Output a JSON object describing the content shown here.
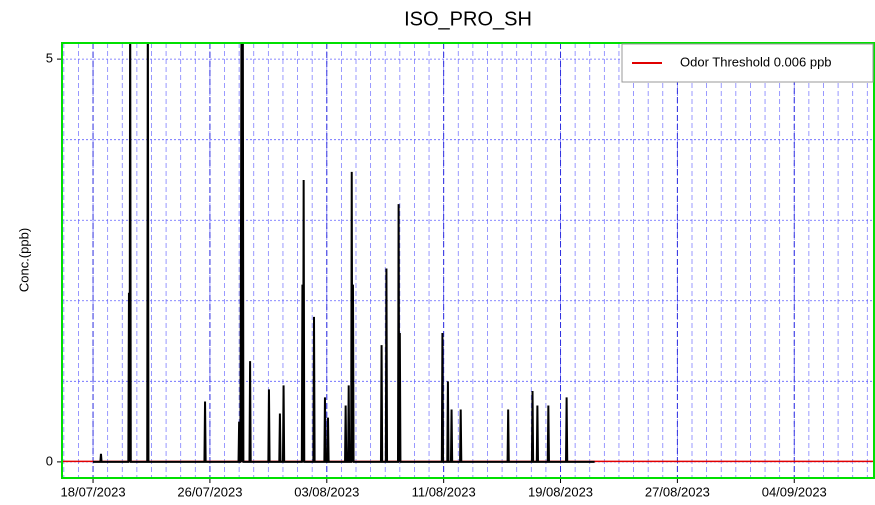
{
  "chart_data": {
    "type": "line",
    "title": "ISO_PRO_SH",
    "y_label": "Conc.(ppb)",
    "xlim": [
      "2023-07-15T21:00",
      "2023-09-09T11:00"
    ],
    "xticks": [
      {
        "value": "2023-07-18",
        "label": "18/07/2023"
      },
      {
        "value": "2023-07-26",
        "label": "26/07/2023"
      },
      {
        "value": "2023-08-03",
        "label": "03/08/2023"
      },
      {
        "value": "2023-08-11",
        "label": "11/08/2023"
      },
      {
        "value": "2023-08-19",
        "label": "19/08/2023"
      },
      {
        "value": "2023-08-27",
        "label": "27/08/2023"
      },
      {
        "value": "2023-09-04",
        "label": "04/09/2023"
      }
    ],
    "x_minor_grid_days": 1,
    "ylim": [
      -0.2,
      5.2
    ],
    "yticks": [
      0,
      5
    ],
    "y_minor_ticks": [
      1,
      2,
      3,
      4
    ],
    "grid": true,
    "legend": "upper right",
    "series": [
      {
        "color": "#000000",
        "x": [
          "2023-07-18T00:00",
          "2023-07-18T12:00",
          "2023-07-18T13:00",
          "2023-07-18T14:00",
          "2023-07-20T10:00",
          "2023-07-20T11:00",
          "2023-07-20T12:00",
          "2023-07-20T13:00",
          "2023-07-20T14:00",
          "2023-07-21T17:00",
          "2023-07-21T18:00",
          "2023-07-21T19:00",
          "2023-07-25T15:00",
          "2023-07-25T16:00",
          "2023-07-25T17:00",
          "2023-07-27T23:00",
          "2023-07-28T00:00",
          "2023-07-28T01:00",
          "2023-07-28T02:00",
          "2023-07-28T03:00",
          "2023-07-28T04:00",
          "2023-07-28T05:00",
          "2023-07-28T06:00",
          "2023-07-28T07:00",
          "2023-07-28T17:00",
          "2023-07-28T18:00",
          "2023-07-28T19:00",
          "2023-07-30T00:00",
          "2023-07-30T01:00",
          "2023-07-30T02:00",
          "2023-07-30T18:00",
          "2023-07-30T19:00",
          "2023-07-30T20:00",
          "2023-07-31T00:00",
          "2023-07-31T01:00",
          "2023-07-31T02:00",
          "2023-08-01T07:00",
          "2023-08-01T08:00",
          "2023-08-01T09:00",
          "2023-08-01T10:00",
          "2023-08-01T11:00",
          "2023-08-02T02:00",
          "2023-08-02T03:00",
          "2023-08-02T04:00",
          "2023-08-02T20:00",
          "2023-08-02T21:00",
          "2023-08-02T22:00",
          "2023-08-03T01:00",
          "2023-08-03T02:00",
          "2023-08-03T03:00",
          "2023-08-04T06:00",
          "2023-08-04T07:00",
          "2023-08-04T08:00",
          "2023-08-04T11:00",
          "2023-08-04T12:00",
          "2023-08-04T13:00",
          "2023-08-04T16:00",
          "2023-08-04T17:00",
          "2023-08-04T18:00",
          "2023-08-04T19:00",
          "2023-08-04T20:00",
          "2023-08-06T17:00",
          "2023-08-06T18:00",
          "2023-08-06T19:00",
          "2023-08-07T01:00",
          "2023-08-07T02:00",
          "2023-08-07T03:00",
          "2023-08-07T21:00",
          "2023-08-07T22:00",
          "2023-08-07T23:00",
          "2023-08-08T00:00",
          "2023-08-08T01:00",
          "2023-08-10T21:00",
          "2023-08-10T22:00",
          "2023-08-10T23:00",
          "2023-08-11T06:00",
          "2023-08-11T07:00",
          "2023-08-11T08:00",
          "2023-08-11T12:00",
          "2023-08-11T13:00",
          "2023-08-11T14:00",
          "2023-08-12T03:00",
          "2023-08-12T04:00",
          "2023-08-12T05:00",
          "2023-08-15T09:00",
          "2023-08-15T10:00",
          "2023-08-15T11:00",
          "2023-08-17T01:00",
          "2023-08-17T02:00",
          "2023-08-17T03:00",
          "2023-08-17T09:00",
          "2023-08-17T10:00",
          "2023-08-17T11:00",
          "2023-08-18T03:00",
          "2023-08-18T04:00",
          "2023-08-18T05:00",
          "2023-08-19T09:00",
          "2023-08-19T10:00",
          "2023-08-19T11:00",
          "2023-08-21T08:00"
        ],
        "values": [
          0,
          0,
          0.1,
          0,
          0,
          2.1,
          0,
          6,
          0,
          0,
          6,
          0,
          0,
          0.75,
          0,
          0,
          0.5,
          0,
          0,
          2.7,
          6,
          0,
          6,
          0,
          0,
          1.25,
          0,
          0,
          0.9,
          0,
          0,
          0.6,
          0,
          0,
          0.95,
          0,
          0,
          2.2,
          0,
          3.5,
          0,
          0,
          1.8,
          0,
          0,
          0.8,
          0,
          0,
          0.55,
          0,
          0,
          0.7,
          0,
          0,
          0.95,
          0,
          0,
          3.6,
          0,
          2.2,
          0,
          0,
          1.45,
          0,
          0,
          2.4,
          0,
          0,
          3.2,
          0,
          1.6,
          0,
          0,
          1.6,
          0,
          0,
          1.0,
          0,
          0,
          0.65,
          0,
          0,
          0.65,
          0,
          0,
          0.65,
          0,
          0,
          0.88,
          0,
          0,
          0.7,
          0,
          0,
          0.7,
          0,
          0,
          0.8,
          0,
          0
        ]
      },
      {
        "name": "Odor Threshold 0.006 ppb",
        "color": "#e00000",
        "x": [
          "2023-07-15T21:00",
          "2023-09-09T11:00"
        ],
        "values": [
          0.006,
          0.006
        ]
      }
    ]
  }
}
